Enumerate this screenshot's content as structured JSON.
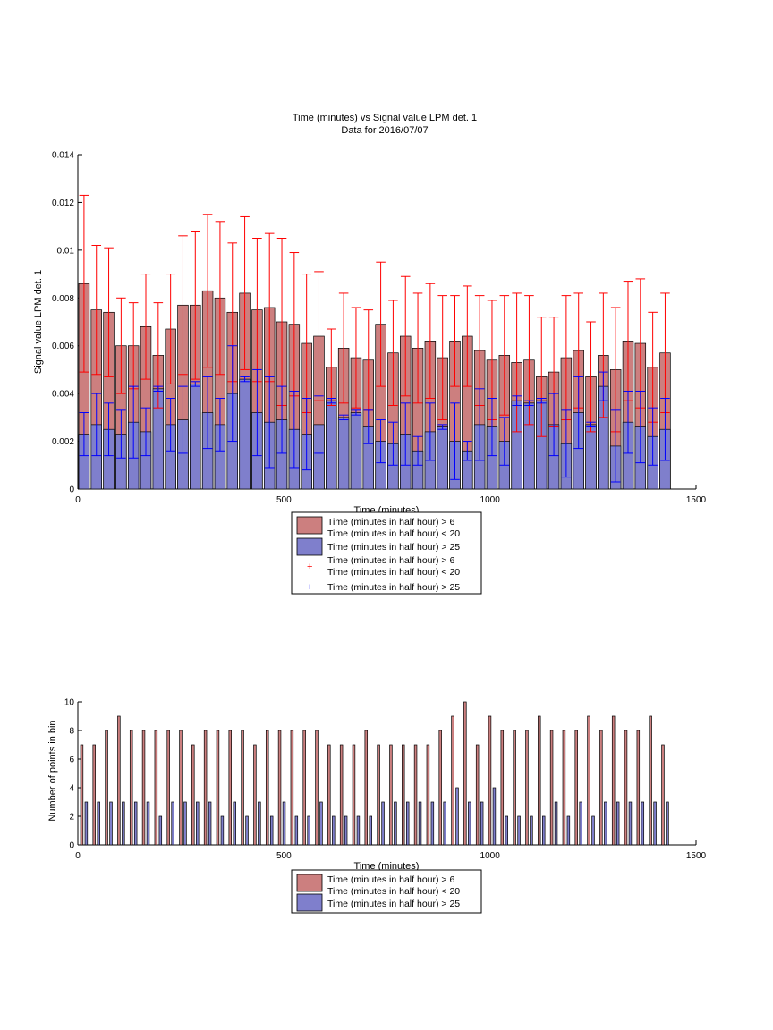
{
  "chart_data": [
    {
      "type": "bar",
      "title": "Time (minutes) vs Signal value LPM det. 1",
      "subtitle": "Data for 2016/07/07",
      "xlabel": "Time (minutes)",
      "ylabel": "Signal value LPM det. 1",
      "xlim": [
        0,
        1500
      ],
      "ylim": [
        0,
        0.014
      ],
      "xticks": [
        "0",
        "500",
        "1000",
        "1500"
      ],
      "yticks": [
        "0",
        "0.002",
        "0.004",
        "0.006",
        "0.008",
        "0.01",
        "0.012",
        "0.014"
      ],
      "grid": false,
      "legend_placement": "below",
      "legend": [
        "Time (minutes in half hour) > 6\nTime (minutes in half hour) < 20",
        "Time (minutes in half hour) > 25",
        "Time (minutes in half hour) > 6\nTime (minutes in half hour) < 20",
        "Time (minutes in half hour) > 25"
      ],
      "x": [
        15,
        45,
        75,
        105,
        135,
        165,
        195,
        225,
        255,
        285,
        315,
        345,
        375,
        405,
        435,
        465,
        495,
        525,
        555,
        585,
        615,
        645,
        675,
        705,
        735,
        765,
        795,
        825,
        855,
        885,
        915,
        945,
        975,
        1005,
        1035,
        1065,
        1095,
        1125,
        1155,
        1185,
        1215,
        1245,
        1275,
        1305,
        1335,
        1365,
        1395,
        1425
      ],
      "series": [
        {
          "color": "#cc7f7f",
          "error_color": "#ff0000",
          "values": [
            0.0086,
            0.0075,
            0.0074,
            0.006,
            0.006,
            0.0068,
            0.0056,
            0.0067,
            0.0077,
            0.0077,
            0.0083,
            0.008,
            0.0074,
            0.0082,
            0.0075,
            0.0076,
            0.007,
            0.0069,
            0.0061,
            0.0064,
            0.0051,
            0.0059,
            0.0055,
            0.0054,
            0.0069,
            0.0057,
            0.0064,
            0.0059,
            0.0062,
            0.0055,
            0.0062,
            0.0064,
            0.0058,
            0.0054,
            0.0056,
            0.0053,
            0.0054,
            0.0047,
            0.0049,
            0.0055,
            0.0058,
            0.0047,
            0.0056,
            0.005,
            0.0062,
            0.0061,
            0.0051,
            0.0057
          ],
          "errors": [
            0.0037,
            0.0027,
            0.0027,
            0.002,
            0.0018,
            0.0022,
            0.0022,
            0.0023,
            0.0029,
            0.0031,
            0.0032,
            0.0032,
            0.0029,
            0.0032,
            0.003,
            0.0031,
            0.0035,
            0.003,
            0.0029,
            0.0027,
            0.0016,
            0.0023,
            0.0021,
            0.0021,
            0.0026,
            0.0022,
            0.0025,
            0.0023,
            0.0024,
            0.0026,
            0.0019,
            0.0021,
            0.0023,
            0.0025,
            0.0025,
            0.0029,
            0.0027,
            0.0025,
            0.0023,
            0.0026,
            0.0024,
            0.0023,
            0.0026,
            0.0026,
            0.0025,
            0.0027,
            0.0023,
            0.0025
          ]
        },
        {
          "color": "#7f7fcc",
          "error_color": "#0000ff",
          "values": [
            0.0023,
            0.0027,
            0.0025,
            0.0023,
            0.0028,
            0.0024,
            0.0042,
            0.0027,
            0.0029,
            0.0044,
            0.0032,
            0.0027,
            0.004,
            0.0046,
            0.0032,
            0.0028,
            0.0029,
            0.0025,
            0.0023,
            0.0027,
            0.0037,
            0.003,
            0.0032,
            0.0026,
            0.002,
            0.0019,
            0.0023,
            0.0016,
            0.0024,
            0.0026,
            0.002,
            0.0016,
            0.0027,
            0.0026,
            0.002,
            0.0037,
            0.0036,
            0.0037,
            0.0027,
            0.0019,
            0.0032,
            0.0027,
            0.0043,
            0.0018,
            0.0028,
            0.0026,
            0.0022,
            0.0025
          ],
          "errors": [
            0.0009,
            0.0013,
            0.0011,
            0.001,
            0.0015,
            0.001,
            0.0001,
            0.0011,
            0.0014,
            0.0001,
            0.0015,
            0.0011,
            0.002,
            0.0001,
            0.0018,
            0.0019,
            0.0014,
            0.0016,
            0.0015,
            0.0012,
            0.0001,
            0.0001,
            0.0001,
            0.0007,
            0.0009,
            0.0009,
            0.0013,
            0.0006,
            0.0012,
            0.0001,
            0.0016,
            0.0004,
            0.0015,
            0.0012,
            0.001,
            0.0002,
            0.0001,
            0.0001,
            0.0013,
            0.0014,
            0.0015,
            0.0001,
            0.0006,
            0.0015,
            0.0013,
            0.0015,
            0.0012,
            0.0013
          ]
        }
      ]
    },
    {
      "type": "bar",
      "xlabel": "Time (minutes)",
      "ylabel": "Number of points in bin",
      "xlim": [
        0,
        1500
      ],
      "ylim": [
        0,
        10
      ],
      "xticks": [
        "0",
        "500",
        "1000",
        "1500"
      ],
      "yticks": [
        "0",
        "2",
        "4",
        "6",
        "8",
        "10"
      ],
      "grid": false,
      "legend_placement": "below",
      "legend": [
        "Time (minutes in half hour) > 6\nTime (minutes in half hour) < 20",
        "Time (minutes in half hour) > 25"
      ],
      "x": [
        15,
        45,
        75,
        105,
        135,
        165,
        195,
        225,
        255,
        285,
        315,
        345,
        375,
        405,
        435,
        465,
        495,
        525,
        555,
        585,
        615,
        645,
        675,
        705,
        735,
        765,
        795,
        825,
        855,
        885,
        915,
        945,
        975,
        1005,
        1035,
        1065,
        1095,
        1125,
        1155,
        1185,
        1215,
        1245,
        1275,
        1305,
        1335,
        1365,
        1395,
        1425
      ],
      "series": [
        {
          "color": "#cc7f7f",
          "values": [
            7,
            7,
            8,
            9,
            8,
            8,
            8,
            8,
            8,
            7,
            8,
            8,
            8,
            8,
            7,
            8,
            8,
            8,
            8,
            8,
            7,
            7,
            7,
            8,
            7,
            7,
            7,
            7,
            7,
            8,
            9,
            10,
            7,
            9,
            8,
            8,
            8,
            9,
            8,
            8,
            8,
            9,
            8,
            9,
            8,
            8,
            9,
            7
          ]
        },
        {
          "color": "#7f7fcc",
          "values": [
            3,
            3,
            3,
            3,
            3,
            3,
            2,
            3,
            3,
            3,
            3,
            2,
            3,
            2,
            3,
            2,
            3,
            2,
            2,
            3,
            2,
            2,
            2,
            2,
            3,
            3,
            3,
            3,
            3,
            3,
            4,
            3,
            3,
            4,
            2,
            2,
            2,
            2,
            3,
            2,
            3,
            2,
            3,
            3,
            3,
            3,
            3,
            3
          ]
        }
      ]
    }
  ]
}
